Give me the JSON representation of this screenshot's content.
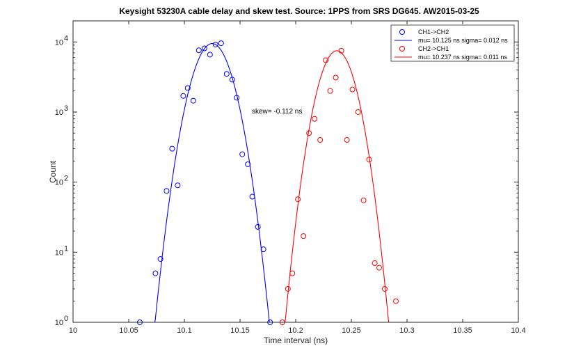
{
  "chart_data": {
    "type": "scatter",
    "title": "Keysight 53230A cable delay and skew test. Source: 1PPS from SRS DG645. AW2015-03-25",
    "xlabel": "Time interval (ns)",
    "ylabel": "Count",
    "xlim": [
      10,
      10.4
    ],
    "ylim": [
      1,
      20000
    ],
    "yscale": "log",
    "xticks": [
      10,
      10.05,
      10.1,
      10.15,
      10.2,
      10.25,
      10.3,
      10.35,
      10.4
    ],
    "xtick_labels": [
      "10",
      "10.05",
      "10.1",
      "10.15",
      "10.2",
      "10.25",
      "10.3",
      "10.35",
      "10.4"
    ],
    "yticks": [
      1,
      10,
      100,
      1000,
      10000
    ],
    "ytick_labels": [
      "10",
      "10",
      "10",
      "10",
      "10"
    ],
    "ytick_exponents": [
      "0",
      "1",
      "2",
      "3",
      "4"
    ],
    "grid": false,
    "legend_position": "top-right",
    "series": [
      {
        "name": "CH1->CH2",
        "kind": "scatter",
        "marker": "circle",
        "color": "#0000ff",
        "x": [
          10.06,
          10.074,
          10.0785,
          10.084,
          10.089,
          10.094,
          10.099,
          10.103,
          10.108,
          10.113,
          10.118,
          10.123,
          10.128,
          10.133,
          10.138,
          10.143,
          10.147,
          10.152,
          10.157,
          10.161,
          10.166,
          10.171,
          10.177
        ],
        "y": [
          1,
          5,
          8,
          75,
          300,
          90,
          1700,
          2200,
          1450,
          7600,
          8100,
          6600,
          9200,
          9600,
          3500,
          2900,
          1600,
          250,
          180,
          62,
          23,
          11,
          1
        ]
      },
      {
        "name": "mu= 10.125 ns sigma= 0.012 ns",
        "kind": "line",
        "color": "#0000ff",
        "mu": 10.125,
        "sigma": 0.012,
        "peak": 9500,
        "x_range": [
          10.07,
          10.18
        ]
      },
      {
        "name": "CH2->CH1",
        "kind": "scatter",
        "marker": "circle",
        "color": "#ff0000",
        "x": [
          10.188,
          10.193,
          10.197,
          10.202,
          10.207,
          10.212,
          10.217,
          10.222,
          10.227,
          10.231,
          10.236,
          10.241,
          10.246,
          10.251,
          10.256,
          10.261,
          10.266,
          10.271,
          10.275,
          10.28,
          10.29
        ],
        "y": [
          1,
          3,
          5,
          57,
          17,
          500,
          800,
          400,
          5500,
          2000,
          3100,
          7500,
          400,
          2100,
          1000,
          55,
          210,
          7,
          6,
          3,
          2
        ]
      },
      {
        "name": "mu= 10.237 ns sigma= 0.011 ns",
        "kind": "line",
        "color": "#ff0000",
        "mu": 10.237,
        "sigma": 0.011,
        "peak": 7500,
        "x_range": [
          10.19,
          10.285
        ]
      }
    ],
    "annotations": [
      {
        "text": "skew= -0.112 ns",
        "x": 10.16,
        "y": 1000
      }
    ]
  }
}
